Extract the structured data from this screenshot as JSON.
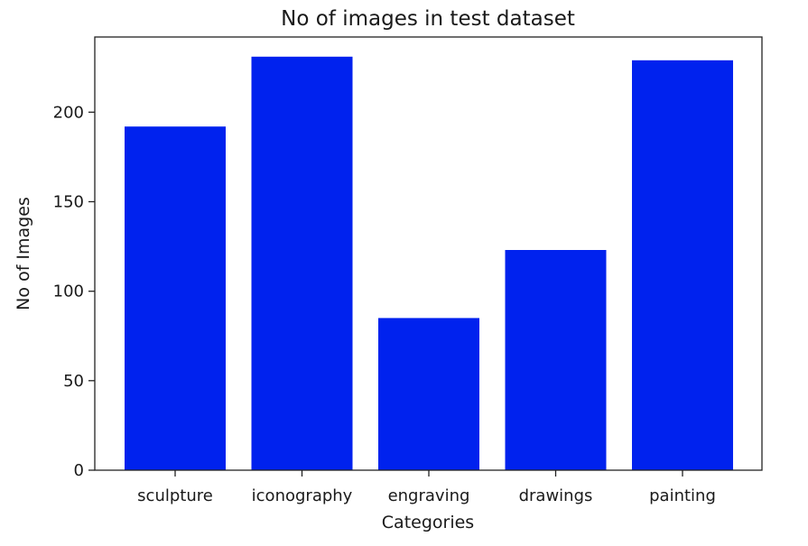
{
  "chart_data": {
    "type": "bar",
    "title": "No of images in test dataset",
    "xlabel": "Categories",
    "ylabel": "No of Images",
    "categories": [
      "sculpture",
      "iconography",
      "engraving",
      "drawings",
      "painting"
    ],
    "values": [
      192,
      231,
      85,
      123,
      229
    ],
    "ylim": [
      0,
      242
    ],
    "yticks": [
      0,
      50,
      100,
      150,
      200
    ],
    "grid": false,
    "bar_color": "#0022ee",
    "axis_color": "#222222"
  }
}
